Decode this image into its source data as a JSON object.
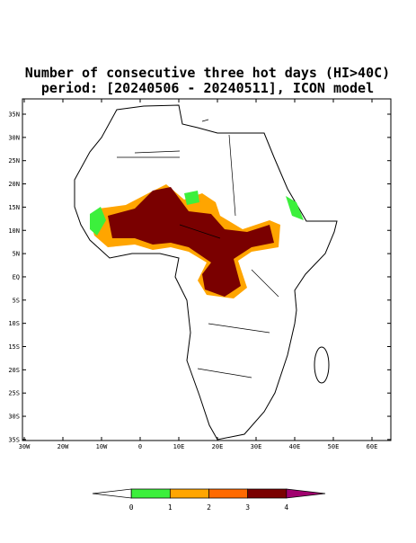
{
  "title_lines": [
    "Number of consecutive three hot days (HI>40C)",
    "period: [20240506 - 20240511], ICON model"
  ],
  "lat_labels": [
    "35N",
    "30N",
    "25N",
    "20N",
    "15N",
    "10N",
    "5N",
    "EQ",
    "5S",
    "10S",
    "15S",
    "20S",
    "25S",
    "30S",
    "35S"
  ],
  "lon_labels": [
    "30W",
    "20W",
    "10W",
    "0",
    "10E",
    "20E",
    "30E",
    "40E",
    "50E",
    "60E"
  ],
  "colorbar": {
    "labels": [
      "0",
      "1",
      "2",
      "3",
      "4"
    ],
    "colors": [
      "#ffffff",
      "#3cf03c",
      "#ffa500",
      "#ff6a00",
      "#7a0000",
      "#a0006e"
    ]
  }
}
